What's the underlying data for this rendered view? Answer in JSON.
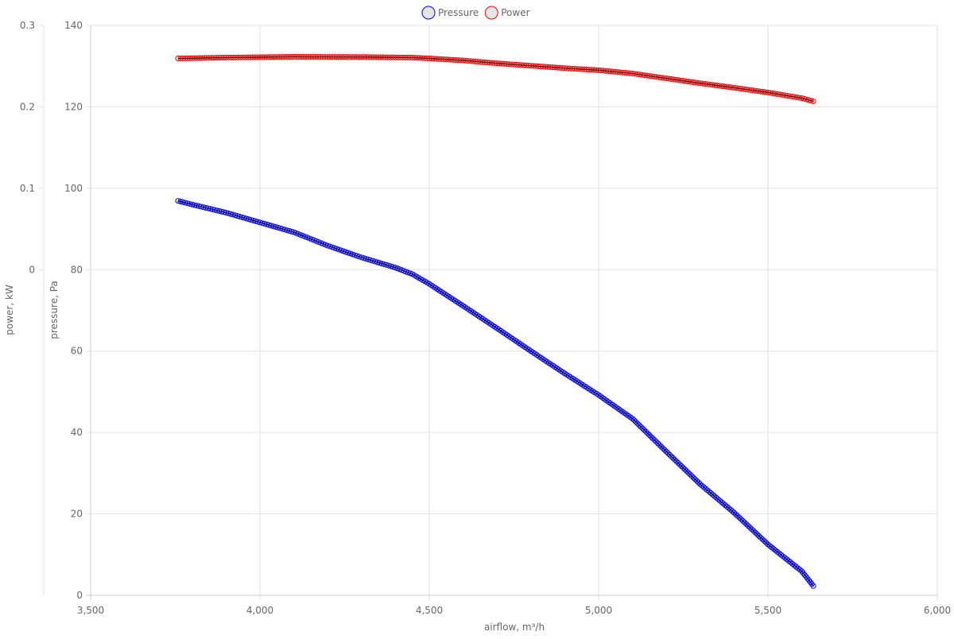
{
  "chart_data": {
    "type": "line",
    "title": "",
    "xlabel": "airflow, m³/h",
    "ylabel_left_outer": "power, kW",
    "ylabel_left_inner": "pressure, Pa",
    "xlim": [
      3500,
      6000
    ],
    "x_ticks": [
      "3,500",
      "4,000",
      "4,500",
      "5,000",
      "5,500",
      "6,000"
    ],
    "x_tick_values": [
      3500,
      4000,
      4500,
      5000,
      5500,
      6000
    ],
    "pressure_axis": {
      "range": [
        0,
        140
      ],
      "ticks": [
        0,
        20,
        40,
        60,
        80,
        100,
        120,
        140
      ]
    },
    "power_axis": {
      "range": [
        -0.4,
        0.3
      ],
      "ticks": [
        0,
        0.1,
        0.2,
        0.3
      ],
      "tick_labels": [
        "0",
        "0.1",
        "0.2",
        "0.3"
      ]
    },
    "grid": true,
    "legend": {
      "placement": "top",
      "entries": [
        "Pressure",
        "Power"
      ]
    },
    "series": [
      {
        "name": "Pressure",
        "axis": "pressure",
        "color": "#0000ff",
        "x": [
          3758,
          3800,
          3900,
          4000,
          4100,
          4200,
          4300,
          4400,
          4450,
          4500,
          4600,
          4700,
          4800,
          4900,
          5000,
          5100,
          5200,
          5300,
          5400,
          5500,
          5600,
          5634
        ],
        "y": [
          96.9,
          96.0,
          94.0,
          91.6,
          89.2,
          85.9,
          83.0,
          80.5,
          78.9,
          76.5,
          71.1,
          65.6,
          60.0,
          54.5,
          49.2,
          43.4,
          35.3,
          27.3,
          20.3,
          12.5,
          5.9,
          2.3
        ]
      },
      {
        "name": "Power",
        "axis": "power",
        "color": "#ff0000",
        "x": [
          3758,
          3900,
          4000,
          4100,
          4300,
          4450,
          4500,
          4600,
          4700,
          4800,
          4900,
          5000,
          5100,
          5200,
          5300,
          5400,
          5500,
          5600,
          5634
        ],
        "y": [
          0.2595,
          0.2605,
          0.261,
          0.2615,
          0.2612,
          0.2605,
          0.2595,
          0.257,
          0.2535,
          0.2505,
          0.2475,
          0.245,
          0.241,
          0.235,
          0.229,
          0.2235,
          0.2176,
          0.2107,
          0.2068
        ]
      }
    ]
  }
}
